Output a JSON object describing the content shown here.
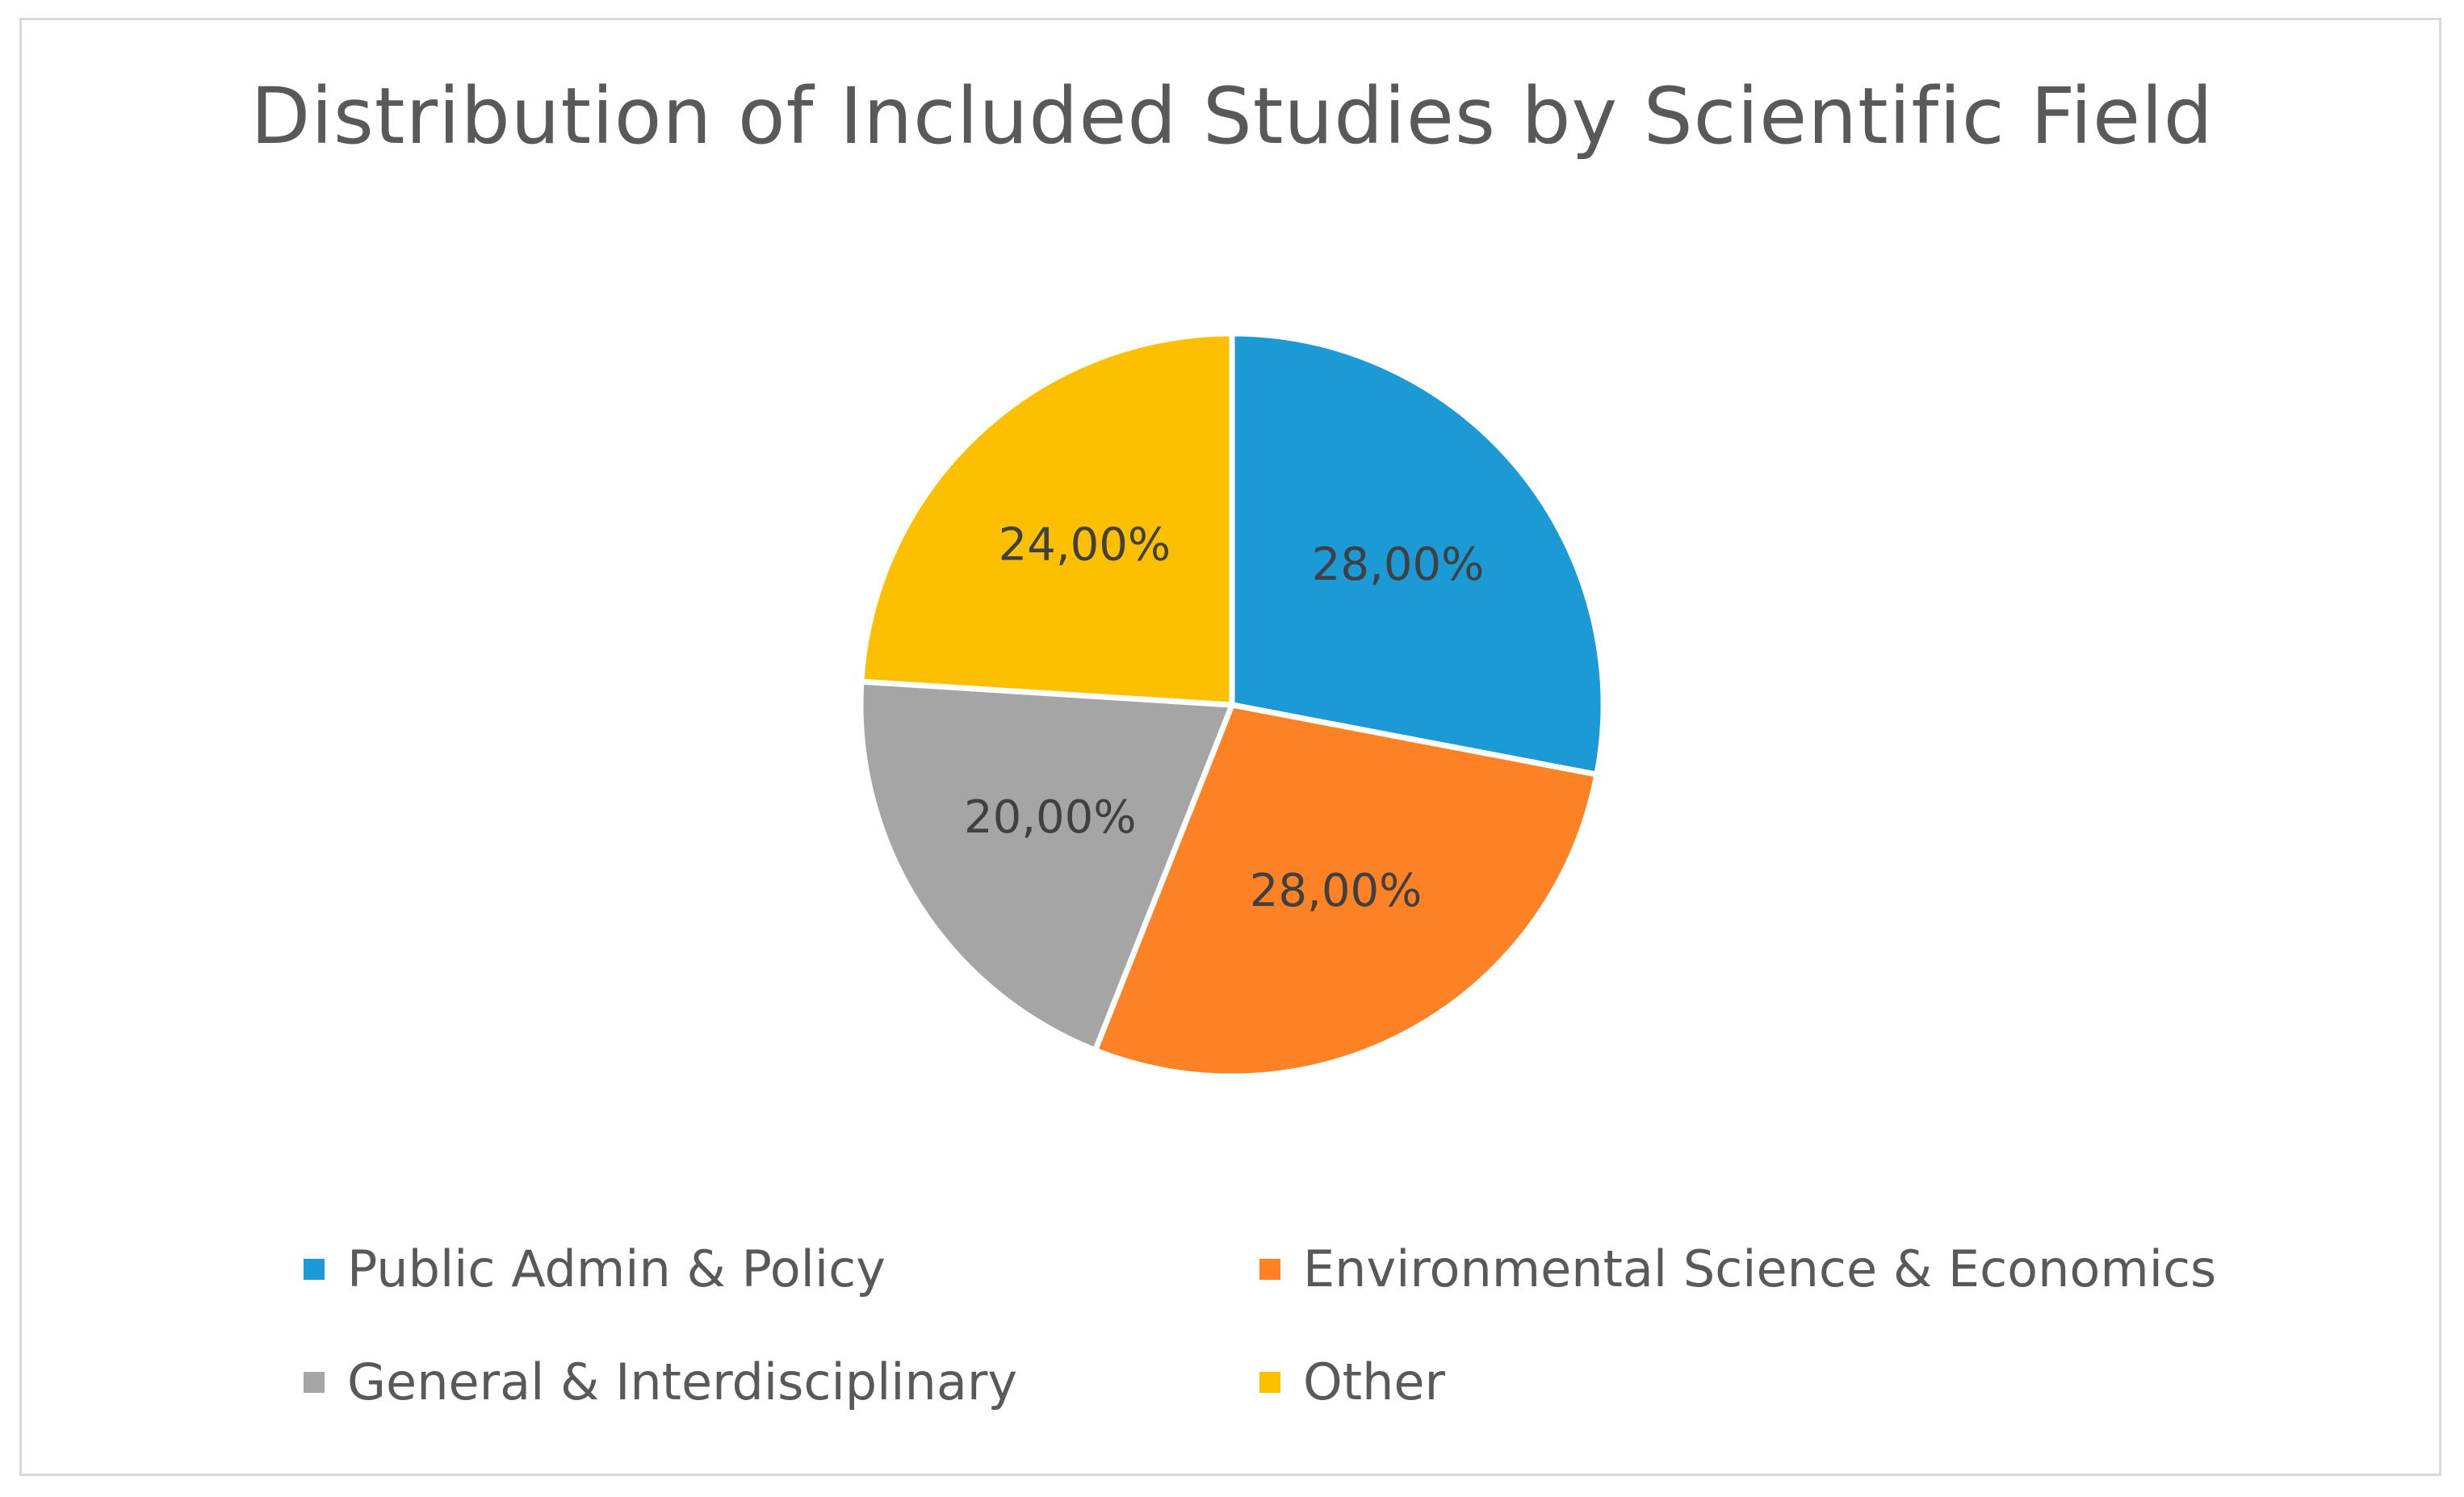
{
  "chart_data": {
    "type": "pie",
    "title": "Distribution of Included Studies by Scientific Field",
    "categories": [
      "Public Admin & Policy",
      "Environmental Science & Economics",
      "General & Interdisciplinary",
      "Other"
    ],
    "values": [
      28.0,
      28.0,
      20.0,
      24.0
    ],
    "labels": [
      "28,00%",
      "28,00%",
      "20,00%",
      "24,00%"
    ],
    "colors": [
      "#1b9ad6",
      "#fd8125",
      "#a5a5a5",
      "#fdc000"
    ],
    "legend": "bottom",
    "start_angle": "12 o'clock, clockwise"
  }
}
